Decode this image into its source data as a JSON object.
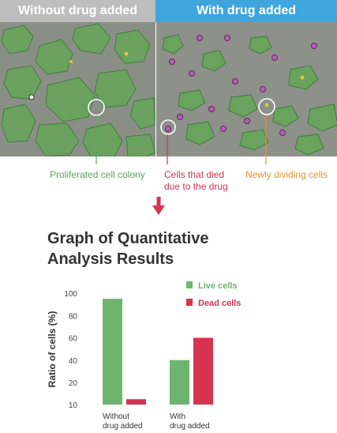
{
  "panels": {
    "left_header": "Without drug added",
    "right_header": "With drug added"
  },
  "callouts": {
    "proliferated": "Proliferated cell colony",
    "died_line1": "Cells that died",
    "died_line2": "due to the drug",
    "dividing": "Newly dividing cells"
  },
  "colors": {
    "live": "#6db56f",
    "dead": "#d6334f",
    "header_left": "#bdbdbd",
    "header_right": "#3fa6dd",
    "arrow": "#d6334f"
  },
  "graph_title_line1": "Graph of Quantitative",
  "graph_title_line2": "Analysis Results",
  "chart_data": {
    "type": "bar",
    "categories": [
      "Without drug added",
      "With drug added"
    ],
    "category_lines": [
      [
        "Without",
        "drug added"
      ],
      [
        "With",
        "drug added"
      ]
    ],
    "series": [
      {
        "name": "Live cells",
        "values": [
          95,
          40
        ]
      },
      {
        "name": "Dead cells",
        "values": [
          5,
          60
        ]
      }
    ],
    "ylabel": "Ratio of cells (%)",
    "yticks": [
      10,
      20,
      40,
      60,
      80,
      100
    ],
    "ylim": [
      0,
      100
    ],
    "legend": "top-right",
    "grid": false
  }
}
